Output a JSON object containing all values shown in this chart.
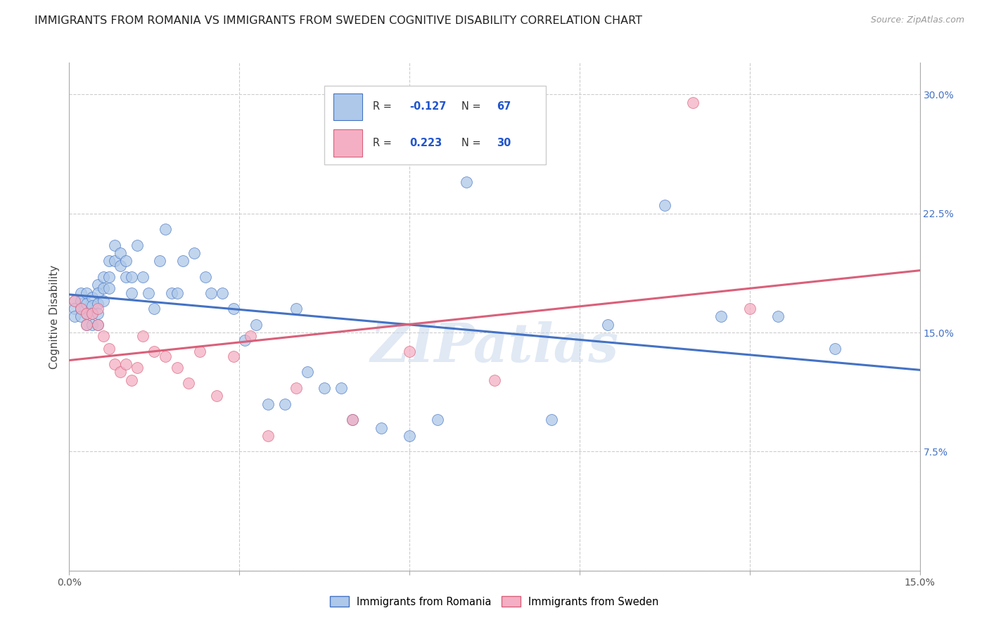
{
  "title": "IMMIGRANTS FROM ROMANIA VS IMMIGRANTS FROM SWEDEN COGNITIVE DISABILITY CORRELATION CHART",
  "source": "Source: ZipAtlas.com",
  "ylabel": "Cognitive Disability",
  "xlim": [
    0.0,
    0.15
  ],
  "ylim": [
    0.0,
    0.32
  ],
  "xticks": [
    0.0,
    0.03,
    0.06,
    0.09,
    0.12,
    0.15
  ],
  "xticklabels": [
    "0.0%",
    "",
    "",
    "",
    "",
    "15.0%"
  ],
  "yticks": [
    0.0,
    0.075,
    0.15,
    0.225,
    0.3
  ],
  "yticklabels_right": [
    "",
    "7.5%",
    "15.0%",
    "22.5%",
    "30.0%"
  ],
  "romania_color": "#adc8e8",
  "sweden_color": "#f4afc4",
  "romania_R": -0.127,
  "romania_N": 67,
  "sweden_R": 0.223,
  "sweden_N": 30,
  "romania_line_color": "#4472c4",
  "sweden_line_color": "#d9607a",
  "romania_x": [
    0.001,
    0.001,
    0.001,
    0.002,
    0.002,
    0.002,
    0.002,
    0.003,
    0.003,
    0.003,
    0.003,
    0.004,
    0.004,
    0.004,
    0.004,
    0.005,
    0.005,
    0.005,
    0.005,
    0.005,
    0.006,
    0.006,
    0.006,
    0.007,
    0.007,
    0.007,
    0.008,
    0.008,
    0.009,
    0.009,
    0.01,
    0.01,
    0.011,
    0.011,
    0.012,
    0.013,
    0.014,
    0.015,
    0.016,
    0.017,
    0.018,
    0.019,
    0.02,
    0.022,
    0.024,
    0.025,
    0.027,
    0.029,
    0.031,
    0.033,
    0.035,
    0.038,
    0.04,
    0.042,
    0.045,
    0.048,
    0.05,
    0.055,
    0.06,
    0.065,
    0.07,
    0.085,
    0.095,
    0.105,
    0.115,
    0.125,
    0.135
  ],
  "romania_y": [
    0.17,
    0.165,
    0.16,
    0.175,
    0.17,
    0.165,
    0.16,
    0.175,
    0.168,
    0.162,
    0.155,
    0.172,
    0.167,
    0.162,
    0.155,
    0.18,
    0.175,
    0.168,
    0.162,
    0.155,
    0.185,
    0.178,
    0.17,
    0.195,
    0.185,
    0.178,
    0.205,
    0.195,
    0.2,
    0.192,
    0.195,
    0.185,
    0.185,
    0.175,
    0.205,
    0.185,
    0.175,
    0.165,
    0.195,
    0.215,
    0.175,
    0.175,
    0.195,
    0.2,
    0.185,
    0.175,
    0.175,
    0.165,
    0.145,
    0.155,
    0.105,
    0.105,
    0.165,
    0.125,
    0.115,
    0.115,
    0.095,
    0.09,
    0.085,
    0.095,
    0.245,
    0.095,
    0.155,
    0.23,
    0.16,
    0.16,
    0.14
  ],
  "sweden_x": [
    0.001,
    0.002,
    0.003,
    0.003,
    0.004,
    0.005,
    0.005,
    0.006,
    0.007,
    0.008,
    0.009,
    0.01,
    0.011,
    0.012,
    0.013,
    0.015,
    0.017,
    0.019,
    0.021,
    0.023,
    0.026,
    0.029,
    0.032,
    0.035,
    0.04,
    0.05,
    0.06,
    0.075,
    0.11,
    0.12
  ],
  "sweden_y": [
    0.17,
    0.165,
    0.162,
    0.155,
    0.162,
    0.165,
    0.155,
    0.148,
    0.14,
    0.13,
    0.125,
    0.13,
    0.12,
    0.128,
    0.148,
    0.138,
    0.135,
    0.128,
    0.118,
    0.138,
    0.11,
    0.135,
    0.148,
    0.085,
    0.115,
    0.095,
    0.138,
    0.12,
    0.295,
    0.165
  ],
  "watermark": "ZIPatlas",
  "background_color": "#ffffff",
  "grid_color": "#cccccc",
  "title_fontsize": 11.5,
  "axis_label_fontsize": 11,
  "tick_fontsize": 10,
  "legend_text_color": "#333333",
  "legend_value_color": "#2255cc",
  "legend_n_color": "#2255cc",
  "ytick_color": "#4472c4"
}
